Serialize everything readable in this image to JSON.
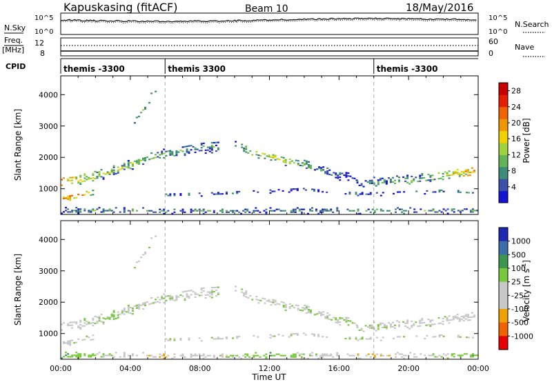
{
  "header": {
    "station": "Kapuskasing (fitACF)",
    "beam": "Beam 10",
    "date": "18/May/2016"
  },
  "noise_panel": {
    "left_label": "N.Sky",
    "right_label": "N.Search",
    "ticks_left": [
      "10^5",
      "10^0"
    ],
    "ticks_right": [
      "10^5",
      "10^0"
    ]
  },
  "freq_panel": {
    "left_label_1": "Freq.",
    "left_label_2": "[MHz]",
    "right_label": "Nave",
    "ticks_left": [
      "12",
      "8"
    ],
    "ticks_right": [
      "60",
      "0"
    ]
  },
  "cpid": {
    "label": "CPID",
    "segments": [
      {
        "start_hour": 0.0,
        "name": "themis -3300"
      },
      {
        "start_hour": 6.0,
        "name": "themis 3300"
      },
      {
        "start_hour": 18.0,
        "name": "themis -3300"
      }
    ]
  },
  "colors": {
    "power_scale": [
      "#1414d2",
      "#3c50aa",
      "#3c8c78",
      "#64b45a",
      "#a0d23c",
      "#f0d200",
      "#f09600",
      "#f06400",
      "#e61e00",
      "#c80000"
    ],
    "velocity_scale": [
      "#e60000",
      "#f06400",
      "#f0a000",
      "#c8c8c8",
      "#c8c8c8",
      "#78c83c",
      "#3c9650",
      "#3c6eaa",
      "#1e28b4"
    ]
  },
  "chart_data": [
    {
      "type": "heatmap",
      "title": "",
      "xlabel": "Time UT",
      "ylabel": "Slant Range [km]",
      "x_range_hours": [
        0,
        24
      ],
      "xticks": [
        "00:00",
        "04:00",
        "08:00",
        "12:00",
        "16:00",
        "20:00",
        "00:00"
      ],
      "ylim": [
        180,
        4600
      ],
      "yticks": [
        1000,
        2000,
        3000,
        4000
      ],
      "colorbar": {
        "label": "Power [dB]",
        "range": [
          0,
          30
        ],
        "ticks": [
          4,
          8,
          12,
          16,
          20,
          24,
          28
        ]
      }
    },
    {
      "type": "heatmap",
      "title": "",
      "xlabel": "Time UT",
      "ylabel": "Slant Range [km]",
      "x_range_hours": [
        0,
        24
      ],
      "xticks": [
        "00:00",
        "04:00",
        "08:00",
        "12:00",
        "16:00",
        "20:00",
        "00:00"
      ],
      "ylim": [
        180,
        4600
      ],
      "yticks": [
        1000,
        2000,
        3000,
        4000
      ],
      "colorbar": {
        "label": "Velocity [m s^-1]",
        "ticks": [
          "1000",
          "500",
          "100",
          "25",
          "-25",
          "-100",
          "-500",
          "-1000"
        ]
      }
    }
  ],
  "echo_bands": [
    {
      "hours": [
        0.0,
        1.5,
        3.0,
        4.5,
        6.0,
        7.5,
        9.0
      ],
      "ranges": [
        1300,
        1350,
        1600,
        1900,
        2150,
        2300,
        2350
      ],
      "spread": 110,
      "density": 0.55,
      "power": [
        20,
        14,
        12,
        12,
        10,
        8,
        8
      ],
      "velocity": [
        -25,
        0,
        25,
        0,
        0,
        0,
        0
      ]
    },
    {
      "hours": [
        10.0,
        11.0,
        12.0,
        13.0,
        14.0,
        15.0,
        16.0,
        17.0
      ],
      "ranges": [
        2450,
        2200,
        2050,
        1900,
        1800,
        1600,
        1450,
        1350
      ],
      "spread": 100,
      "density": 0.5,
      "power": [
        10,
        12,
        14,
        14,
        10,
        8,
        6,
        6
      ],
      "velocity": [
        0,
        0,
        0,
        0,
        0,
        0,
        0,
        0
      ]
    },
    {
      "hours": [
        17.0,
        18.5,
        20.0,
        21.5,
        23.0,
        24.0
      ],
      "ranges": [
        1200,
        1250,
        1300,
        1400,
        1550,
        1600
      ],
      "spread": 110,
      "density": 0.5,
      "power": [
        6,
        8,
        10,
        12,
        18,
        22
      ],
      "velocity": [
        0,
        0,
        0,
        0,
        -25,
        0
      ]
    },
    {
      "hours": [
        4.2,
        4.8,
        5.5
      ],
      "ranges": [
        3200,
        3600,
        4300
      ],
      "spread": 80,
      "density": 0.4,
      "power": [
        8,
        10,
        10
      ],
      "velocity": [
        0,
        0,
        25
      ]
    },
    {
      "hours": [
        6.0,
        8.0,
        9.5,
        12.0,
        14.0,
        16.0,
        18.0,
        20.0,
        22.0,
        24.0
      ],
      "ranges": [
        820,
        850,
        880,
        950,
        1000,
        880,
        860,
        900,
        950,
        900
      ],
      "spread": 40,
      "density": 0.35,
      "power": [
        6,
        8,
        6,
        4,
        4,
        6,
        6,
        6,
        8,
        8
      ],
      "velocity": [
        0,
        0,
        0,
        0,
        0,
        0,
        0,
        0,
        0,
        0
      ]
    },
    {
      "hours": [
        0.0,
        1.0,
        2.0
      ],
      "ranges": [
        700,
        800,
        900
      ],
      "spread": 60,
      "density": 0.45,
      "power": [
        22,
        20,
        12
      ],
      "velocity": [
        -25,
        0,
        25
      ]
    },
    {
      "hours": [
        0.0,
        6.0,
        12.0,
        18.0,
        24.0
      ],
      "ranges": [
        330,
        320,
        320,
        320,
        330
      ],
      "spread": 60,
      "density": 0.55,
      "power": [
        8,
        8,
        6,
        8,
        8
      ],
      "velocity": [
        100,
        -100,
        100,
        -100,
        100
      ]
    }
  ]
}
